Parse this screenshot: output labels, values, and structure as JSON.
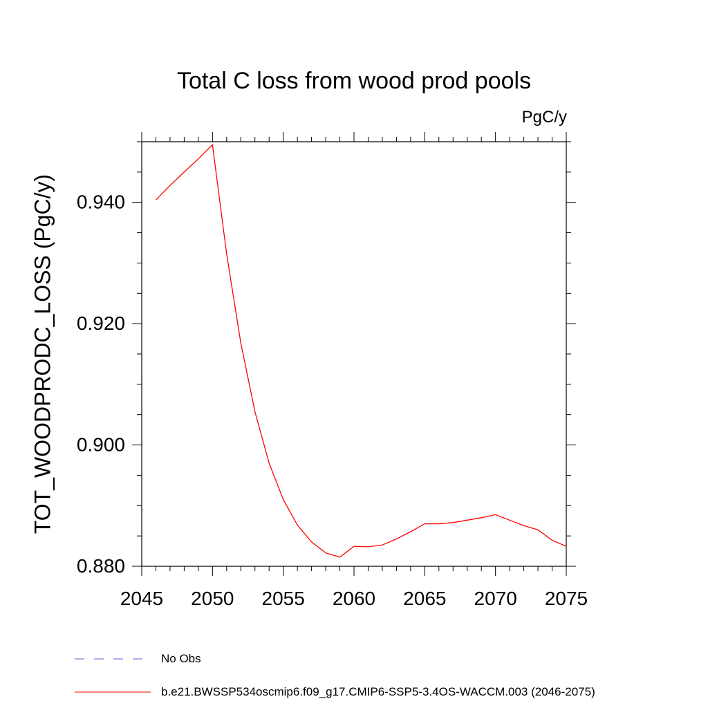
{
  "chart_data": {
    "type": "line",
    "title": "Total C loss from wood prod pools",
    "units_label": "PgC/y",
    "ylabel": "TOT_WOODPRODC_LOSS  (PgC/y)",
    "xlabel": "",
    "xlim": [
      2045,
      2075
    ],
    "ylim": [
      0.88,
      0.95
    ],
    "x_ticks": [
      "2045",
      "2050",
      "2055",
      "2060",
      "2065",
      "2070",
      "2075"
    ],
    "y_ticks": [
      "0.880",
      "0.900",
      "0.920",
      "0.940"
    ],
    "grid": false,
    "legend_position": "bottom-left",
    "legend": [
      {
        "label": "No Obs",
        "style": "dashed",
        "color": "#6a5acd"
      },
      {
        "label": "b.e21.BWSSP534oscmip6.f09_g17.CMIP6-SSP5-3.4OS-WACCM.003 (2046-2075)",
        "style": "solid",
        "color": "#ff0000"
      }
    ],
    "series": [
      {
        "name": "b.e21.BWSSP534oscmip6.f09_g17.CMIP6-SSP5-3.4OS-WACCM.003 (2046-2075)",
        "color": "#ff0000",
        "x": [
          2046,
          2047,
          2048,
          2049,
          2050,
          2051,
          2052,
          2053,
          2054,
          2055,
          2056,
          2057,
          2058,
          2059,
          2060,
          2061,
          2062,
          2063,
          2064,
          2065,
          2066,
          2067,
          2068,
          2069,
          2070,
          2071,
          2072,
          2073,
          2074,
          2075
        ],
        "y": [
          0.9404,
          0.9428,
          0.945,
          0.9472,
          0.9495,
          0.9315,
          0.9168,
          0.9055,
          0.897,
          0.891,
          0.8868,
          0.884,
          0.8822,
          0.8815,
          0.8833,
          0.8832,
          0.8835,
          0.8845,
          0.8857,
          0.887,
          0.887,
          0.8872,
          0.8876,
          0.888,
          0.8885,
          0.8876,
          0.8867,
          0.886,
          0.8843,
          0.8833
        ]
      }
    ]
  }
}
